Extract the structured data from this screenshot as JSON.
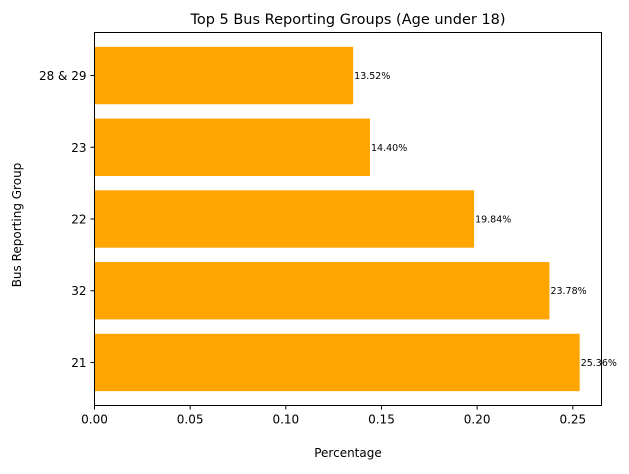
{
  "chart_data": {
    "type": "bar",
    "orientation": "horizontal",
    "title": "Top 5 Bus Reporting Groups (Age under 18)",
    "xlabel": "Percentage",
    "ylabel": "Bus Reporting Group",
    "categories": [
      "21",
      "32",
      "22",
      "23",
      "28 & 29"
    ],
    "values": [
      0.2536,
      0.2378,
      0.1984,
      0.144,
      0.1352
    ],
    "data_labels": [
      "25.36%",
      "23.78%",
      "19.84%",
      "14.40%",
      "13.52%"
    ],
    "xlim": [
      0,
      0.265
    ],
    "xticks": [
      0,
      0.05,
      0.1,
      0.15,
      0.2,
      0.25
    ],
    "xtick_labels": [
      "0.00",
      "0.05",
      "0.10",
      "0.15",
      "0.20",
      "0.25"
    ],
    "bar_color": "#ffa500",
    "grid": false,
    "legend": "none"
  }
}
